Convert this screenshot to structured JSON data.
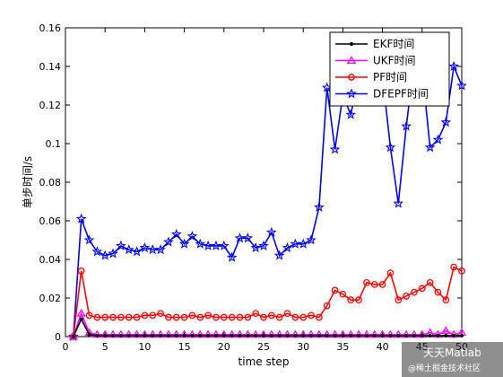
{
  "chart_data": {
    "type": "line",
    "xlabel": "time step",
    "ylabel": "单步时间/s",
    "xlim": [
      0,
      50
    ],
    "ylim": [
      0,
      0.16
    ],
    "xticks": [
      "0",
      "5",
      "10",
      "15",
      "20",
      "25",
      "30",
      "35",
      "40",
      "45",
      "50"
    ],
    "yticks": [
      "0",
      "0.02",
      "0.04",
      "0.06",
      "0.08",
      "0.1",
      "0.12",
      "0.14",
      "0.16"
    ],
    "grid": false,
    "legend_position": "top-right",
    "x": [
      1,
      2,
      3,
      4,
      5,
      6,
      7,
      8,
      9,
      10,
      11,
      12,
      13,
      14,
      15,
      16,
      17,
      18,
      19,
      20,
      21,
      22,
      23,
      24,
      25,
      26,
      27,
      28,
      29,
      30,
      31,
      32,
      33,
      34,
      35,
      36,
      37,
      38,
      39,
      40,
      41,
      42,
      43,
      44,
      45,
      46,
      47,
      48,
      49,
      50
    ],
    "series": [
      {
        "name": "EKF时间",
        "color": "#000000",
        "marker": "dot",
        "values": [
          0,
          0.009,
          0.001,
          0.0005,
          0.0005,
          0.0005,
          0.0005,
          0.0005,
          0.0005,
          0.0005,
          0.0005,
          0.0005,
          0.0005,
          0.0005,
          0.0005,
          0.0005,
          0.0005,
          0.0005,
          0.0005,
          0.0005,
          0.0005,
          0.0005,
          0.0005,
          0.0005,
          0.0005,
          0.0005,
          0.0005,
          0.0005,
          0.0005,
          0.0005,
          0.0005,
          0.0005,
          0.0005,
          0.0005,
          0.0005,
          0.0005,
          0.0005,
          0.0005,
          0.0005,
          0.0005,
          0.0005,
          0.0005,
          0.0005,
          0.0005,
          0.0005,
          0.0005,
          0.0005,
          0.0005,
          0.0005,
          0.0005
        ]
      },
      {
        "name": "UKF时间",
        "color": "#ff00ff",
        "marker": "triangle",
        "values": [
          0,
          0.012,
          0.002,
          0.001,
          0.001,
          0.001,
          0.001,
          0.001,
          0.001,
          0.001,
          0.001,
          0.001,
          0.001,
          0.001,
          0.001,
          0.001,
          0.001,
          0.001,
          0.001,
          0.001,
          0.001,
          0.001,
          0.001,
          0.001,
          0.001,
          0.001,
          0.001,
          0.001,
          0.001,
          0.001,
          0.001,
          0.001,
          0.001,
          0.001,
          0.001,
          0.001,
          0.001,
          0.001,
          0.001,
          0.001,
          0.001,
          0.001,
          0.001,
          0.001,
          0.001,
          0.002,
          0.001,
          0.003,
          0.001,
          0.002
        ]
      },
      {
        "name": "PF时间",
        "color": "#ff0000",
        "marker": "circle",
        "values": [
          0,
          0.034,
          0.011,
          0.01,
          0.01,
          0.01,
          0.01,
          0.01,
          0.01,
          0.011,
          0.011,
          0.012,
          0.01,
          0.01,
          0.01,
          0.011,
          0.01,
          0.011,
          0.01,
          0.01,
          0.01,
          0.01,
          0.01,
          0.012,
          0.01,
          0.011,
          0.01,
          0.012,
          0.01,
          0.01,
          0.011,
          0.01,
          0.016,
          0.024,
          0.022,
          0.019,
          0.019,
          0.028,
          0.027,
          0.027,
          0.033,
          0.019,
          0.021,
          0.023,
          0.025,
          0.028,
          0.023,
          0.019,
          0.036,
          0.034
        ]
      },
      {
        "name": "DFEPF时间",
        "color": "#0000ff",
        "marker": "star",
        "values": [
          0,
          0.061,
          0.05,
          0.044,
          0.042,
          0.043,
          0.047,
          0.045,
          0.044,
          0.046,
          0.045,
          0.045,
          0.049,
          0.053,
          0.048,
          0.052,
          0.048,
          0.047,
          0.047,
          0.047,
          0.041,
          0.051,
          0.051,
          0.046,
          0.047,
          0.054,
          0.042,
          0.046,
          0.048,
          0.048,
          0.05,
          0.067,
          0.129,
          0.097,
          0.125,
          0.115,
          0.135,
          0.131,
          0.135,
          0.135,
          0.098,
          0.069,
          0.109,
          0.142,
          0.139,
          0.098,
          0.102,
          0.111,
          0.14,
          0.13
        ]
      }
    ]
  },
  "watermark": {
    "title": "天天Matlab",
    "subtitle": "@稀土掘金技术社区"
  }
}
